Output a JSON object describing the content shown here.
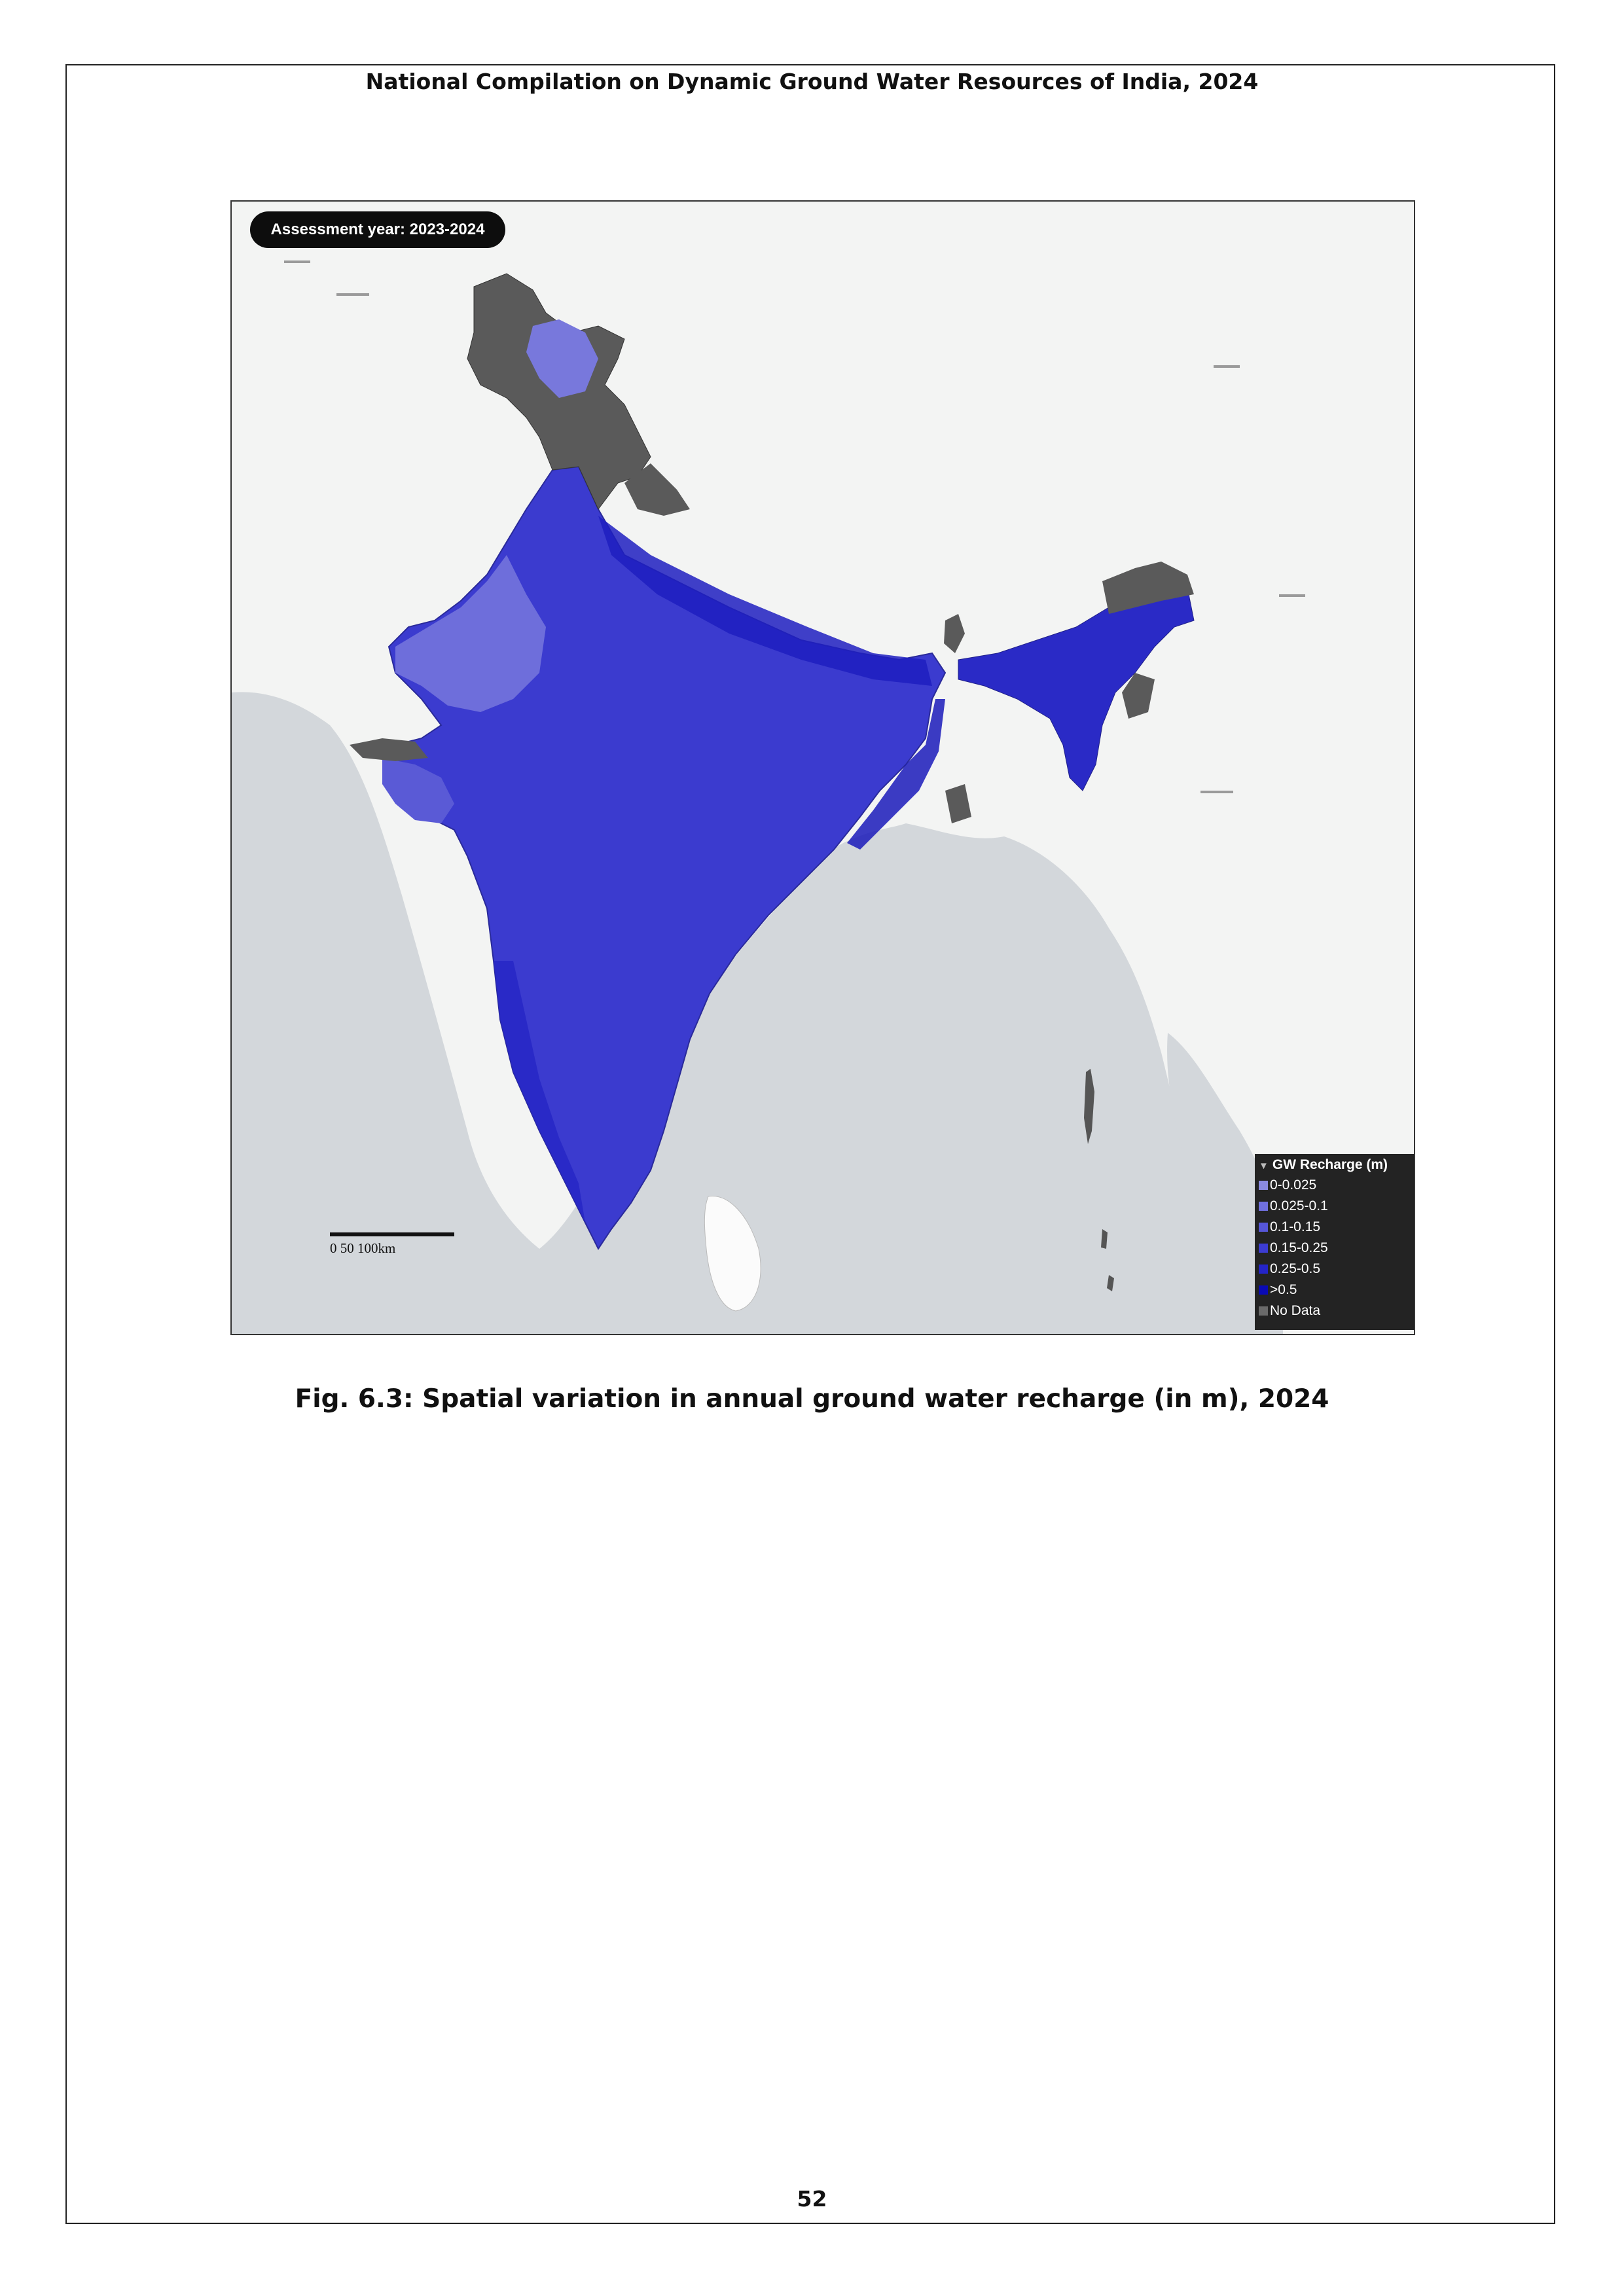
{
  "header": {
    "title": "National Compilation on Dynamic Ground Water Resources of India, 2024"
  },
  "map": {
    "assessment_label": "Assessment year: 2023-2024",
    "scale_label": "0   50  100km",
    "legend": {
      "title": "GW Recharge (m)",
      "items": [
        {
          "label": "0-0.025",
          "color": "#8a8ae0"
        },
        {
          "label": "0.025-0.1",
          "color": "#7070de"
        },
        {
          "label": "0.1-0.15",
          "color": "#5656d8"
        },
        {
          "label": "0.15-0.25",
          "color": "#3c3cd2"
        },
        {
          "label": "0.25-0.5",
          "color": "#2424c8"
        },
        {
          "label": ">0.5",
          "color": "#0a0ab4"
        },
        {
          "label": "No Data",
          "color": "#6a6a6a"
        }
      ]
    },
    "colors": {
      "ocean": "#d3d7db",
      "land": "#f3f4f3",
      "india_main": "#3b3bcf",
      "no_data": "#5a5a5a"
    }
  },
  "caption": "Fig. 6.3: Spatial variation in annual ground water recharge (in m), 2024",
  "page_number": "52"
}
